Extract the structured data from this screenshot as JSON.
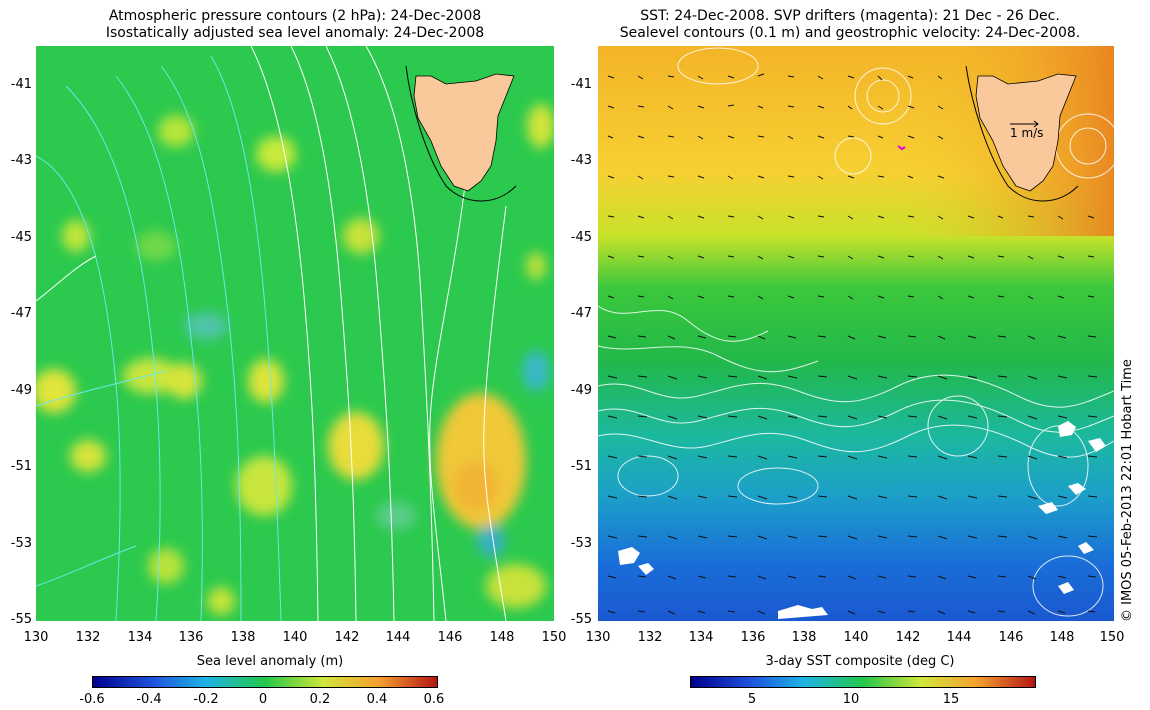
{
  "left": {
    "title_line1": "Atmospheric pressure contours (2 hPa): 24-Dec-2008",
    "title_line2": "Isostatically adjusted sea level anomaly: 24-Dec-2008",
    "y_ticks": [
      "-41",
      "-43",
      "-45",
      "-47",
      "-49",
      "-51",
      "-53",
      "-55"
    ],
    "x_ticks": [
      "130",
      "132",
      "134",
      "136",
      "138",
      "140",
      "142",
      "144",
      "146",
      "148",
      "150"
    ],
    "colorbar_label": "Sea level anomaly (m)",
    "colorbar_ticks": [
      "-0.6",
      "-0.4",
      "-0.2",
      "0",
      "0.2",
      "0.4",
      "0.6"
    ]
  },
  "right": {
    "title_line1": "SST: 24-Dec-2008. SVP drifters (magenta): 21 Dec - 26 Dec.",
    "title_line2": "Sealevel contours (0.1 m) and geostrophic velocity: 24-Dec-2008.",
    "y_ticks": [
      "-41",
      "-43",
      "-45",
      "-47",
      "-49",
      "-51",
      "-53",
      "-55"
    ],
    "x_ticks": [
      "130",
      "132",
      "134",
      "136",
      "138",
      "140",
      "142",
      "144",
      "146",
      "148",
      "150"
    ],
    "velocity_scale_label": "1 m/s",
    "colorbar_label": "3-day SST composite (deg C)",
    "colorbar_ticks": [
      "5",
      "10",
      "15"
    ]
  },
  "credit": "© IMOS 05-Feb-2013 22:01 Hobart Time",
  "colors": {
    "land": "#f9c99b",
    "sla_field": "#22c84a",
    "contour_white": "#ffffff",
    "contour_cyan": "#6fe6e6",
    "drifter": "#e000e0"
  }
}
